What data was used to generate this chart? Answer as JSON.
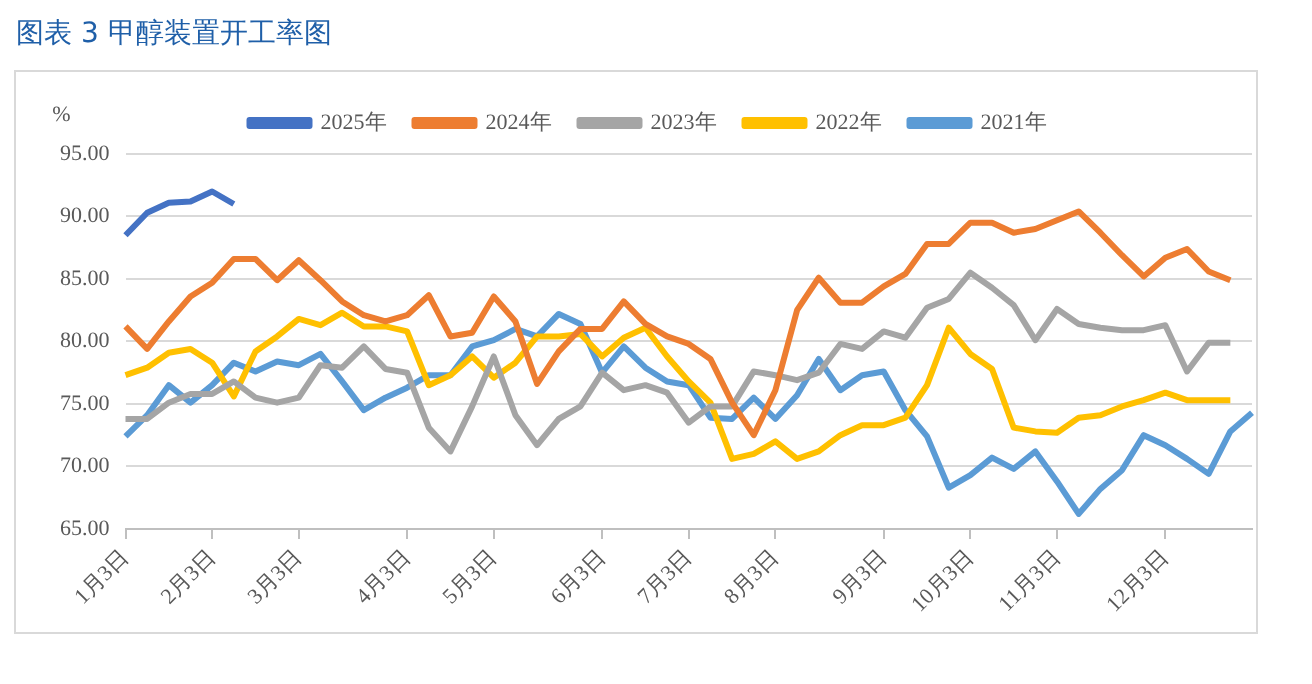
{
  "chart_data": {
    "type": "line",
    "title": "图表 3 甲醇装置开工率图",
    "ylabel": "%",
    "categories": [
      "1月3日",
      null,
      null,
      null,
      "2月3日",
      null,
      null,
      null,
      "3月3日",
      null,
      null,
      null,
      null,
      "4月3日",
      null,
      null,
      null,
      "5月3日",
      null,
      null,
      null,
      null,
      "6月3日",
      null,
      null,
      null,
      "7月3日",
      null,
      null,
      null,
      "8月3日",
      null,
      null,
      null,
      null,
      "9月3日",
      null,
      null,
      null,
      "10月3日",
      null,
      null,
      null,
      "11月3日",
      null,
      null,
      null,
      null,
      "12月3日",
      null,
      null,
      null,
      null
    ],
    "ylim": [
      65,
      95
    ],
    "yticks": [
      {
        "value": 65,
        "label": "65.00"
      },
      {
        "value": 70,
        "label": "70.00"
      },
      {
        "value": 75,
        "label": "75.00"
      },
      {
        "value": 80,
        "label": "80.00"
      },
      {
        "value": 85,
        "label": "85.00"
      },
      {
        "value": 90,
        "label": "90.00"
      },
      {
        "value": 95,
        "label": "95.00"
      }
    ],
    "grid": "y",
    "legend": "top",
    "line_style": "solid",
    "series": [
      {
        "name": "2025年",
        "color": "#4472c4",
        "values": [
          88.5,
          90.3,
          91.1,
          91.2,
          92.0,
          91.0,
          null,
          null,
          null,
          null,
          null,
          null,
          null,
          null,
          null,
          null,
          null,
          null,
          null,
          null,
          null,
          null,
          null,
          null,
          null,
          null,
          null,
          null,
          null,
          null,
          null,
          null,
          null,
          null,
          null,
          null,
          null,
          null,
          null,
          null,
          null,
          null,
          null,
          null,
          null,
          null,
          null,
          null,
          null,
          null,
          null,
          null,
          null
        ]
      },
      {
        "name": "2024年",
        "color": "#ed7d31",
        "values": [
          81.2,
          79.4,
          81.6,
          83.6,
          84.7,
          86.6,
          86.6,
          84.9,
          86.5,
          84.9,
          83.2,
          82.1,
          81.6,
          82.1,
          83.7,
          80.4,
          80.7,
          83.6,
          81.6,
          76.6,
          79.2,
          81.0,
          81.0,
          83.2,
          81.4,
          80.4,
          79.8,
          78.6,
          75.1,
          72.5,
          76.1,
          82.5,
          85.1,
          83.1,
          83.1,
          84.4,
          85.4,
          87.8,
          87.8,
          89.5,
          89.5,
          88.7,
          89.0,
          89.7,
          90.4,
          88.7,
          86.9,
          85.2,
          86.7,
          87.4,
          85.6,
          84.9,
          null
        ]
      },
      {
        "name": "2023年",
        "color": "#a5a5a5",
        "values": [
          73.8,
          73.8,
          75.1,
          75.8,
          75.8,
          76.8,
          75.5,
          75.1,
          75.5,
          78.1,
          77.9,
          79.6,
          77.8,
          77.5,
          73.1,
          71.2,
          74.8,
          78.8,
          74.1,
          71.7,
          73.8,
          74.8,
          77.5,
          76.1,
          76.5,
          75.9,
          73.5,
          74.8,
          74.8,
          77.6,
          77.3,
          76.9,
          77.5,
          79.8,
          79.4,
          80.8,
          80.3,
          82.7,
          83.4,
          85.5,
          84.3,
          82.9,
          80.1,
          82.6,
          81.4,
          81.1,
          80.9,
          80.9,
          81.3,
          77.6,
          79.9,
          79.9,
          null
        ]
      },
      {
        "name": "2022年",
        "color": "#ffc000",
        "values": [
          77.3,
          77.9,
          79.1,
          79.4,
          78.3,
          75.6,
          79.2,
          80.4,
          81.8,
          81.3,
          82.3,
          81.2,
          81.2,
          80.8,
          76.5,
          77.3,
          78.8,
          77.1,
          78.3,
          80.4,
          80.4,
          80.6,
          78.8,
          80.3,
          81.1,
          78.8,
          76.8,
          75.1,
          70.6,
          71.0,
          72.0,
          70.6,
          71.2,
          72.5,
          73.3,
          73.3,
          73.9,
          76.5,
          81.1,
          79.0,
          77.8,
          73.1,
          72.8,
          72.7,
          73.9,
          74.1,
          74.8,
          75.3,
          75.9,
          75.3,
          75.3,
          75.3,
          null
        ]
      },
      {
        "name": "2021年",
        "color": "#5b9bd5",
        "values": [
          72.4,
          74.1,
          76.5,
          75.1,
          76.5,
          78.3,
          77.6,
          78.4,
          78.1,
          79.0,
          76.8,
          74.5,
          75.5,
          76.3,
          77.3,
          77.3,
          79.6,
          80.1,
          81.0,
          80.4,
          82.2,
          81.4,
          77.5,
          79.6,
          77.9,
          76.8,
          76.5,
          73.9,
          73.8,
          75.5,
          73.8,
          75.7,
          78.6,
          76.1,
          77.3,
          77.6,
          74.5,
          72.4,
          68.3,
          69.3,
          70.7,
          69.8,
          71.2,
          68.8,
          66.2,
          68.2,
          69.7,
          72.5,
          71.7,
          70.6,
          69.4,
          72.8,
          74.3
        ]
      }
    ]
  }
}
